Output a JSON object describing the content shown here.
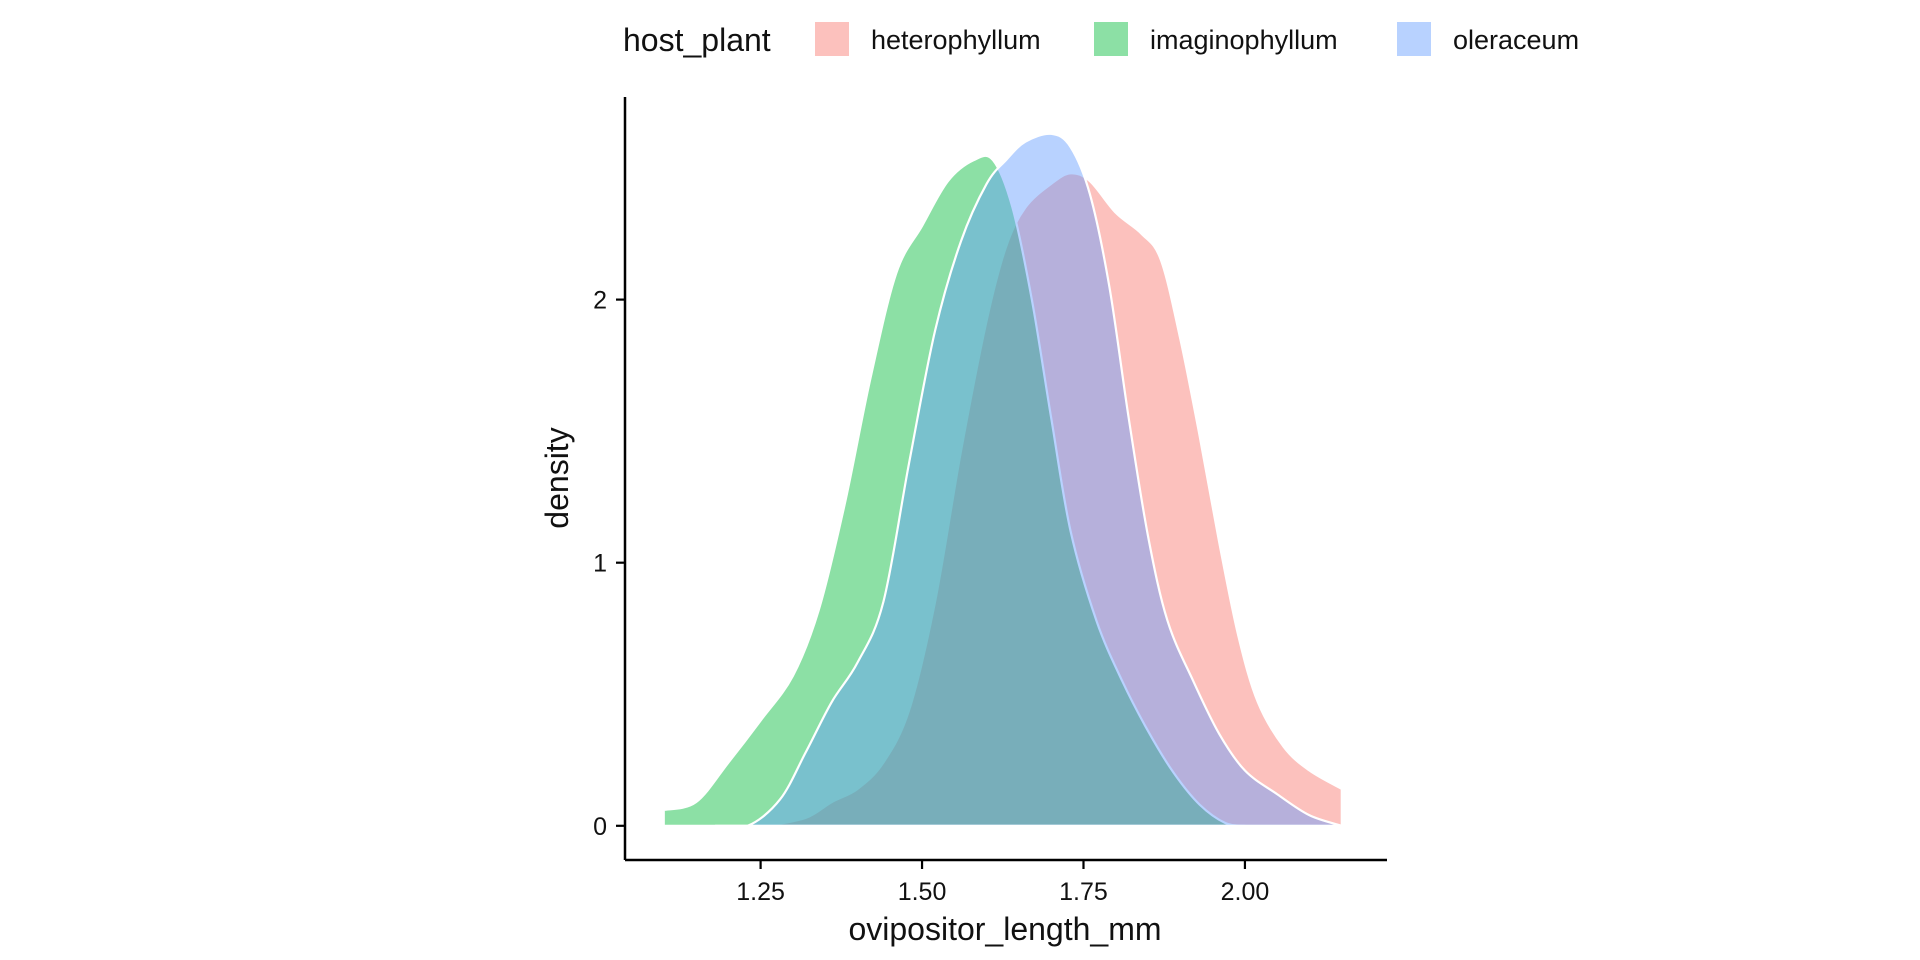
{
  "chart_data": {
    "type": "area",
    "xlabel": "ovipositor_length_mm",
    "ylabel": "density",
    "xlim": [
      1.04,
      2.22
    ],
    "ylim": [
      -0.13,
      2.77
    ],
    "x_ticks": [
      1.25,
      1.5,
      1.75,
      2.0
    ],
    "x_tick_labels": [
      "1.25",
      "1.50",
      "1.75",
      "2.00"
    ],
    "y_ticks": [
      0,
      1,
      2
    ],
    "y_tick_labels": [
      "0",
      "1",
      "2"
    ],
    "grid": false,
    "legend": {
      "title": "host_plant",
      "position": "top",
      "entries": [
        "heterophyllum",
        "imaginophyllum",
        "oleraceum"
      ]
    },
    "series": [
      {
        "name": "heterophyllum",
        "color": "#F8766D",
        "points": [
          [
            1.26,
            0.0
          ],
          [
            1.32,
            0.03
          ],
          [
            1.36,
            0.09
          ],
          [
            1.4,
            0.14
          ],
          [
            1.44,
            0.24
          ],
          [
            1.48,
            0.44
          ],
          [
            1.52,
            0.85
          ],
          [
            1.56,
            1.42
          ],
          [
            1.6,
            1.92
          ],
          [
            1.63,
            2.2
          ],
          [
            1.66,
            2.35
          ],
          [
            1.7,
            2.44
          ],
          [
            1.73,
            2.48
          ],
          [
            1.76,
            2.45
          ],
          [
            1.8,
            2.33
          ],
          [
            1.84,
            2.25
          ],
          [
            1.87,
            2.15
          ],
          [
            1.9,
            1.85
          ],
          [
            1.93,
            1.48
          ],
          [
            1.96,
            1.08
          ],
          [
            1.99,
            0.72
          ],
          [
            2.02,
            0.47
          ],
          [
            2.06,
            0.3
          ],
          [
            2.1,
            0.21
          ],
          [
            2.15,
            0.14
          ]
        ]
      },
      {
        "name": "imaginophyllum",
        "color": "#00BA38",
        "points": [
          [
            1.1,
            0.06
          ],
          [
            1.15,
            0.09
          ],
          [
            1.2,
            0.24
          ],
          [
            1.25,
            0.4
          ],
          [
            1.3,
            0.57
          ],
          [
            1.34,
            0.82
          ],
          [
            1.38,
            1.22
          ],
          [
            1.42,
            1.7
          ],
          [
            1.46,
            2.1
          ],
          [
            1.5,
            2.28
          ],
          [
            1.54,
            2.45
          ],
          [
            1.58,
            2.53
          ],
          [
            1.61,
            2.53
          ],
          [
            1.64,
            2.35
          ],
          [
            1.67,
            2.0
          ],
          [
            1.7,
            1.55
          ],
          [
            1.73,
            1.12
          ],
          [
            1.77,
            0.78
          ],
          [
            1.81,
            0.55
          ],
          [
            1.85,
            0.36
          ],
          [
            1.89,
            0.2
          ],
          [
            1.93,
            0.08
          ],
          [
            1.97,
            0.01
          ],
          [
            2.0,
            0.0
          ]
        ]
      },
      {
        "name": "oleraceum",
        "color": "#619CFF",
        "points": [
          [
            1.18,
            0.0
          ],
          [
            1.23,
            0.0
          ],
          [
            1.28,
            0.1
          ],
          [
            1.32,
            0.28
          ],
          [
            1.36,
            0.47
          ],
          [
            1.4,
            0.62
          ],
          [
            1.44,
            0.85
          ],
          [
            1.48,
            1.38
          ],
          [
            1.52,
            1.88
          ],
          [
            1.56,
            2.22
          ],
          [
            1.6,
            2.44
          ],
          [
            1.63,
            2.53
          ],
          [
            1.66,
            2.6
          ],
          [
            1.7,
            2.63
          ],
          [
            1.73,
            2.58
          ],
          [
            1.76,
            2.4
          ],
          [
            1.79,
            2.05
          ],
          [
            1.82,
            1.55
          ],
          [
            1.85,
            1.1
          ],
          [
            1.88,
            0.78
          ],
          [
            1.92,
            0.55
          ],
          [
            1.96,
            0.35
          ],
          [
            2.0,
            0.21
          ],
          [
            2.05,
            0.12
          ],
          [
            2.1,
            0.04
          ],
          [
            2.15,
            0.0
          ]
        ]
      }
    ]
  }
}
